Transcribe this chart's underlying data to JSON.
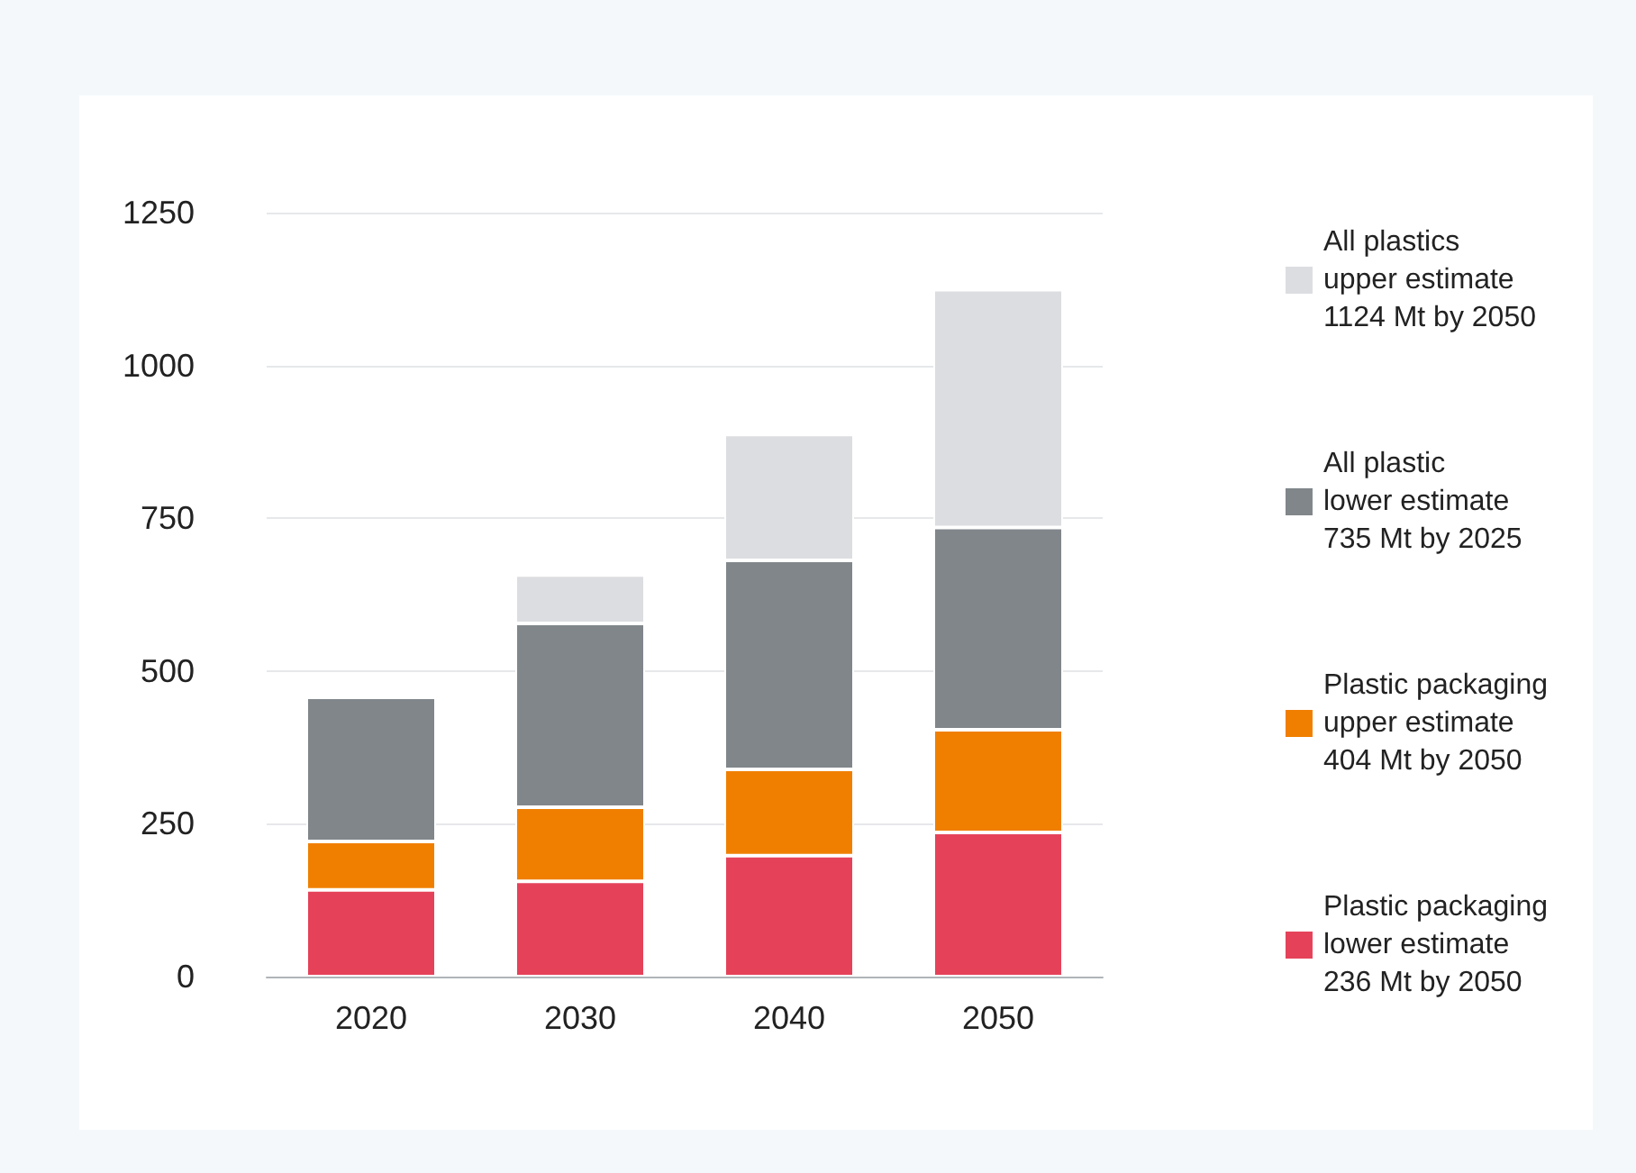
{
  "chart_data": {
    "type": "bar",
    "stacked": true,
    "categories": [
      "2020",
      "2030",
      "2040",
      "2050"
    ],
    "series": [
      {
        "name": "Plastic packaging\nlower estimate\n236 Mt by 2050",
        "color": "#e5425a",
        "values": [
          142,
          156,
          198,
          236
        ]
      },
      {
        "name": "Plastic packaging\nupper estimate\n404 Mt by 2050",
        "color": "#f07f00",
        "values": [
          79,
          121,
          141,
          168
        ]
      },
      {
        "name": "All plastic\nlower estimate\n735 Mt by 2025",
        "color": "#80868a",
        "values": [
          236,
          301,
          342,
          331
        ]
      },
      {
        "name": "All plastics\nupper estimate\n1124 Mt by 2050",
        "color": "#dcdde1",
        "values": [
          null,
          79,
          206,
          389
        ]
      }
    ],
    "ylim": [
      0,
      1250
    ],
    "yticks": [
      0,
      250,
      500,
      750,
      1000,
      1250
    ],
    "grid": "y",
    "legend": "right"
  }
}
